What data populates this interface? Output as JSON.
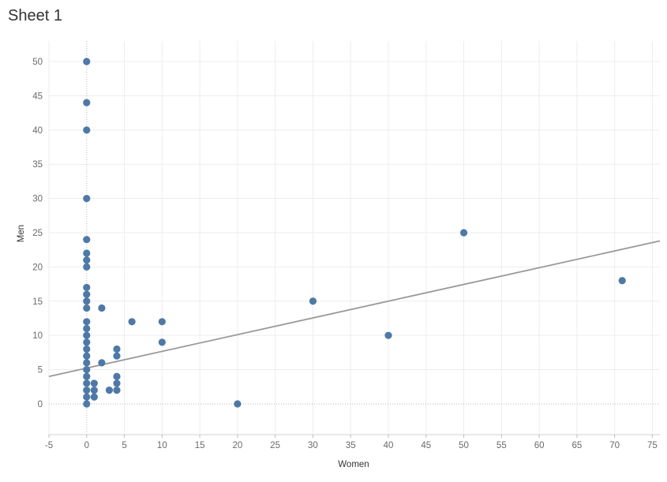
{
  "sheet": {
    "title": "Sheet 1"
  },
  "chart_data": {
    "type": "scatter",
    "xlabel": "Women",
    "ylabel": "Men",
    "xlim": [
      -5,
      76
    ],
    "ylim": [
      -4.5,
      53
    ],
    "x_ticks": [
      -5,
      0,
      5,
      10,
      15,
      20,
      25,
      30,
      35,
      40,
      45,
      50,
      55,
      60,
      65,
      70,
      75
    ],
    "y_ticks": [
      0,
      5,
      10,
      15,
      20,
      25,
      30,
      35,
      40,
      45,
      50
    ],
    "grid": true,
    "point_color": "#4e79a7",
    "trend_color": "#999999",
    "points": [
      {
        "x": 0,
        "y": 50
      },
      {
        "x": 0,
        "y": 44
      },
      {
        "x": 0,
        "y": 40
      },
      {
        "x": 0,
        "y": 30
      },
      {
        "x": 0,
        "y": 24
      },
      {
        "x": 0,
        "y": 22
      },
      {
        "x": 0,
        "y": 21
      },
      {
        "x": 0,
        "y": 20
      },
      {
        "x": 0,
        "y": 17
      },
      {
        "x": 0,
        "y": 16
      },
      {
        "x": 0,
        "y": 15
      },
      {
        "x": 0,
        "y": 14
      },
      {
        "x": 0,
        "y": 12
      },
      {
        "x": 0,
        "y": 11
      },
      {
        "x": 0,
        "y": 10
      },
      {
        "x": 0,
        "y": 9
      },
      {
        "x": 0,
        "y": 8
      },
      {
        "x": 0,
        "y": 7
      },
      {
        "x": 0,
        "y": 6
      },
      {
        "x": 0,
        "y": 5
      },
      {
        "x": 0,
        "y": 4
      },
      {
        "x": 0,
        "y": 3
      },
      {
        "x": 0,
        "y": 2
      },
      {
        "x": 0,
        "y": 1
      },
      {
        "x": 0,
        "y": 0
      },
      {
        "x": 1,
        "y": 3
      },
      {
        "x": 1,
        "y": 2
      },
      {
        "x": 1,
        "y": 1
      },
      {
        "x": 2,
        "y": 14
      },
      {
        "x": 2,
        "y": 6
      },
      {
        "x": 3,
        "y": 2
      },
      {
        "x": 4,
        "y": 8
      },
      {
        "x": 4,
        "y": 7
      },
      {
        "x": 4,
        "y": 4
      },
      {
        "x": 4,
        "y": 3
      },
      {
        "x": 4,
        "y": 2
      },
      {
        "x": 6,
        "y": 12
      },
      {
        "x": 10,
        "y": 12
      },
      {
        "x": 10,
        "y": 9
      },
      {
        "x": 20,
        "y": 0
      },
      {
        "x": 30,
        "y": 15
      },
      {
        "x": 40,
        "y": 10
      },
      {
        "x": 50,
        "y": 25
      },
      {
        "x": 71,
        "y": 18
      }
    ],
    "trend_line": {
      "type": "linear",
      "start": {
        "x": -5,
        "y": 4.0
      },
      "end": {
        "x": 76,
        "y": 23.8
      }
    }
  }
}
